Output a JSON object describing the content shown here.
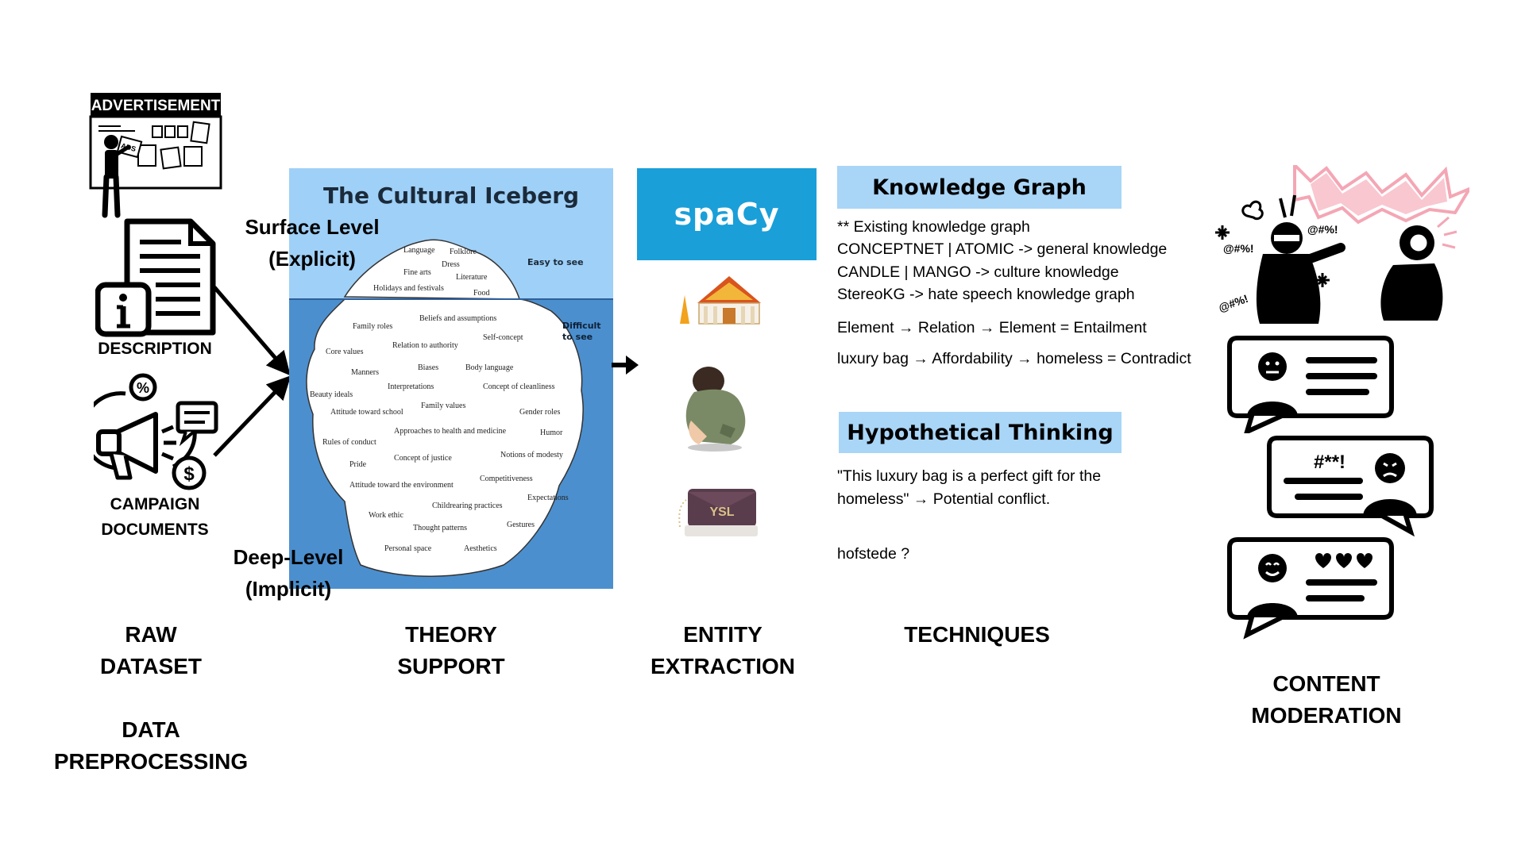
{
  "raw_dataset": {
    "ad_sign": "ADVERTISEMENT",
    "ads_tag": "ADS",
    "description_label": "DESCRIPTION",
    "campaign_label": "CAMPAIGN\nDOCUMENTS",
    "stage_label": "RAW\nDATASET",
    "preprocessing_label": "DATA\nPREPROCESSING"
  },
  "theory": {
    "iceberg_title": "The Cultural Iceberg",
    "surface_label": "Surface Level\n(Explicit)",
    "deep_label": "Deep-Level\n(Implicit)",
    "easy_to_see": "Easy to see",
    "difficult_to_see": "Difficult\nto see",
    "surface_items": [
      "Language",
      "Folklore",
      "Dress",
      "Fine arts",
      "Literature",
      "Holidays and festivals",
      "Food"
    ],
    "deep_items": [
      "Family roles",
      "Beliefs and assumptions",
      "Self-concept",
      "Core values",
      "Relation to authority",
      "Manners",
      "Biases",
      "Body language",
      "Beauty ideals",
      "Interpretations",
      "Concept of cleanliness",
      "Attitude toward school",
      "Family values",
      "Gender roles",
      "Approaches to health and medicine",
      "Humor",
      "Rules of conduct",
      "Concept of justice",
      "Notions of modesty",
      "Pride",
      "Competitiveness",
      "Attitude toward the environment",
      "Expectations",
      "Childrearing practices",
      "Work ethic",
      "Gestures",
      "Thought patterns",
      "Personal space",
      "Aesthetics"
    ],
    "stage_label": "THEORY\nSUPPORT"
  },
  "entity": {
    "spacy_logo": "spaCy",
    "stage_label": "ENTITY\nEXTRACTION",
    "images": [
      "temple-icon",
      "homeless-person-icon",
      "luxury-bag-icon"
    ]
  },
  "techniques": {
    "kg_heading": "Knowledge Graph",
    "kg_lines": [
      "** Existing knowledge graph",
      "CONCEPTNET | ATOMIC -> general knowledge",
      "CANDLE | MANGO -> culture knowledge",
      "StereoKG -> hate speech knowledge graph"
    ],
    "entailment_line": "Element → Relation → Element = Entailment",
    "contradict_line": "luxury bag → Affordability → homeless = Contradict",
    "ht_heading": "Hypothetical Thinking",
    "ht_line1": "\"This luxury bag is a perfect gift for the",
    "ht_line2": "homeless\" →   Potential conflict.",
    "hofstede": "hofstede ?",
    "stage_label": "TECHNIQUES"
  },
  "moderation": {
    "swear1": "@#%!",
    "swear2": "@#%!",
    "swear3": "@#%!",
    "bubble2_text": "#**!",
    "stage_label": "CONTENT\nMODERATION"
  },
  "colors": {
    "sky": "#9fd0f7",
    "water": "#4c8fce",
    "spacy": "#1a9fd8",
    "heading_bg": "#a9d5f7",
    "burst": "#f4a6b4"
  }
}
